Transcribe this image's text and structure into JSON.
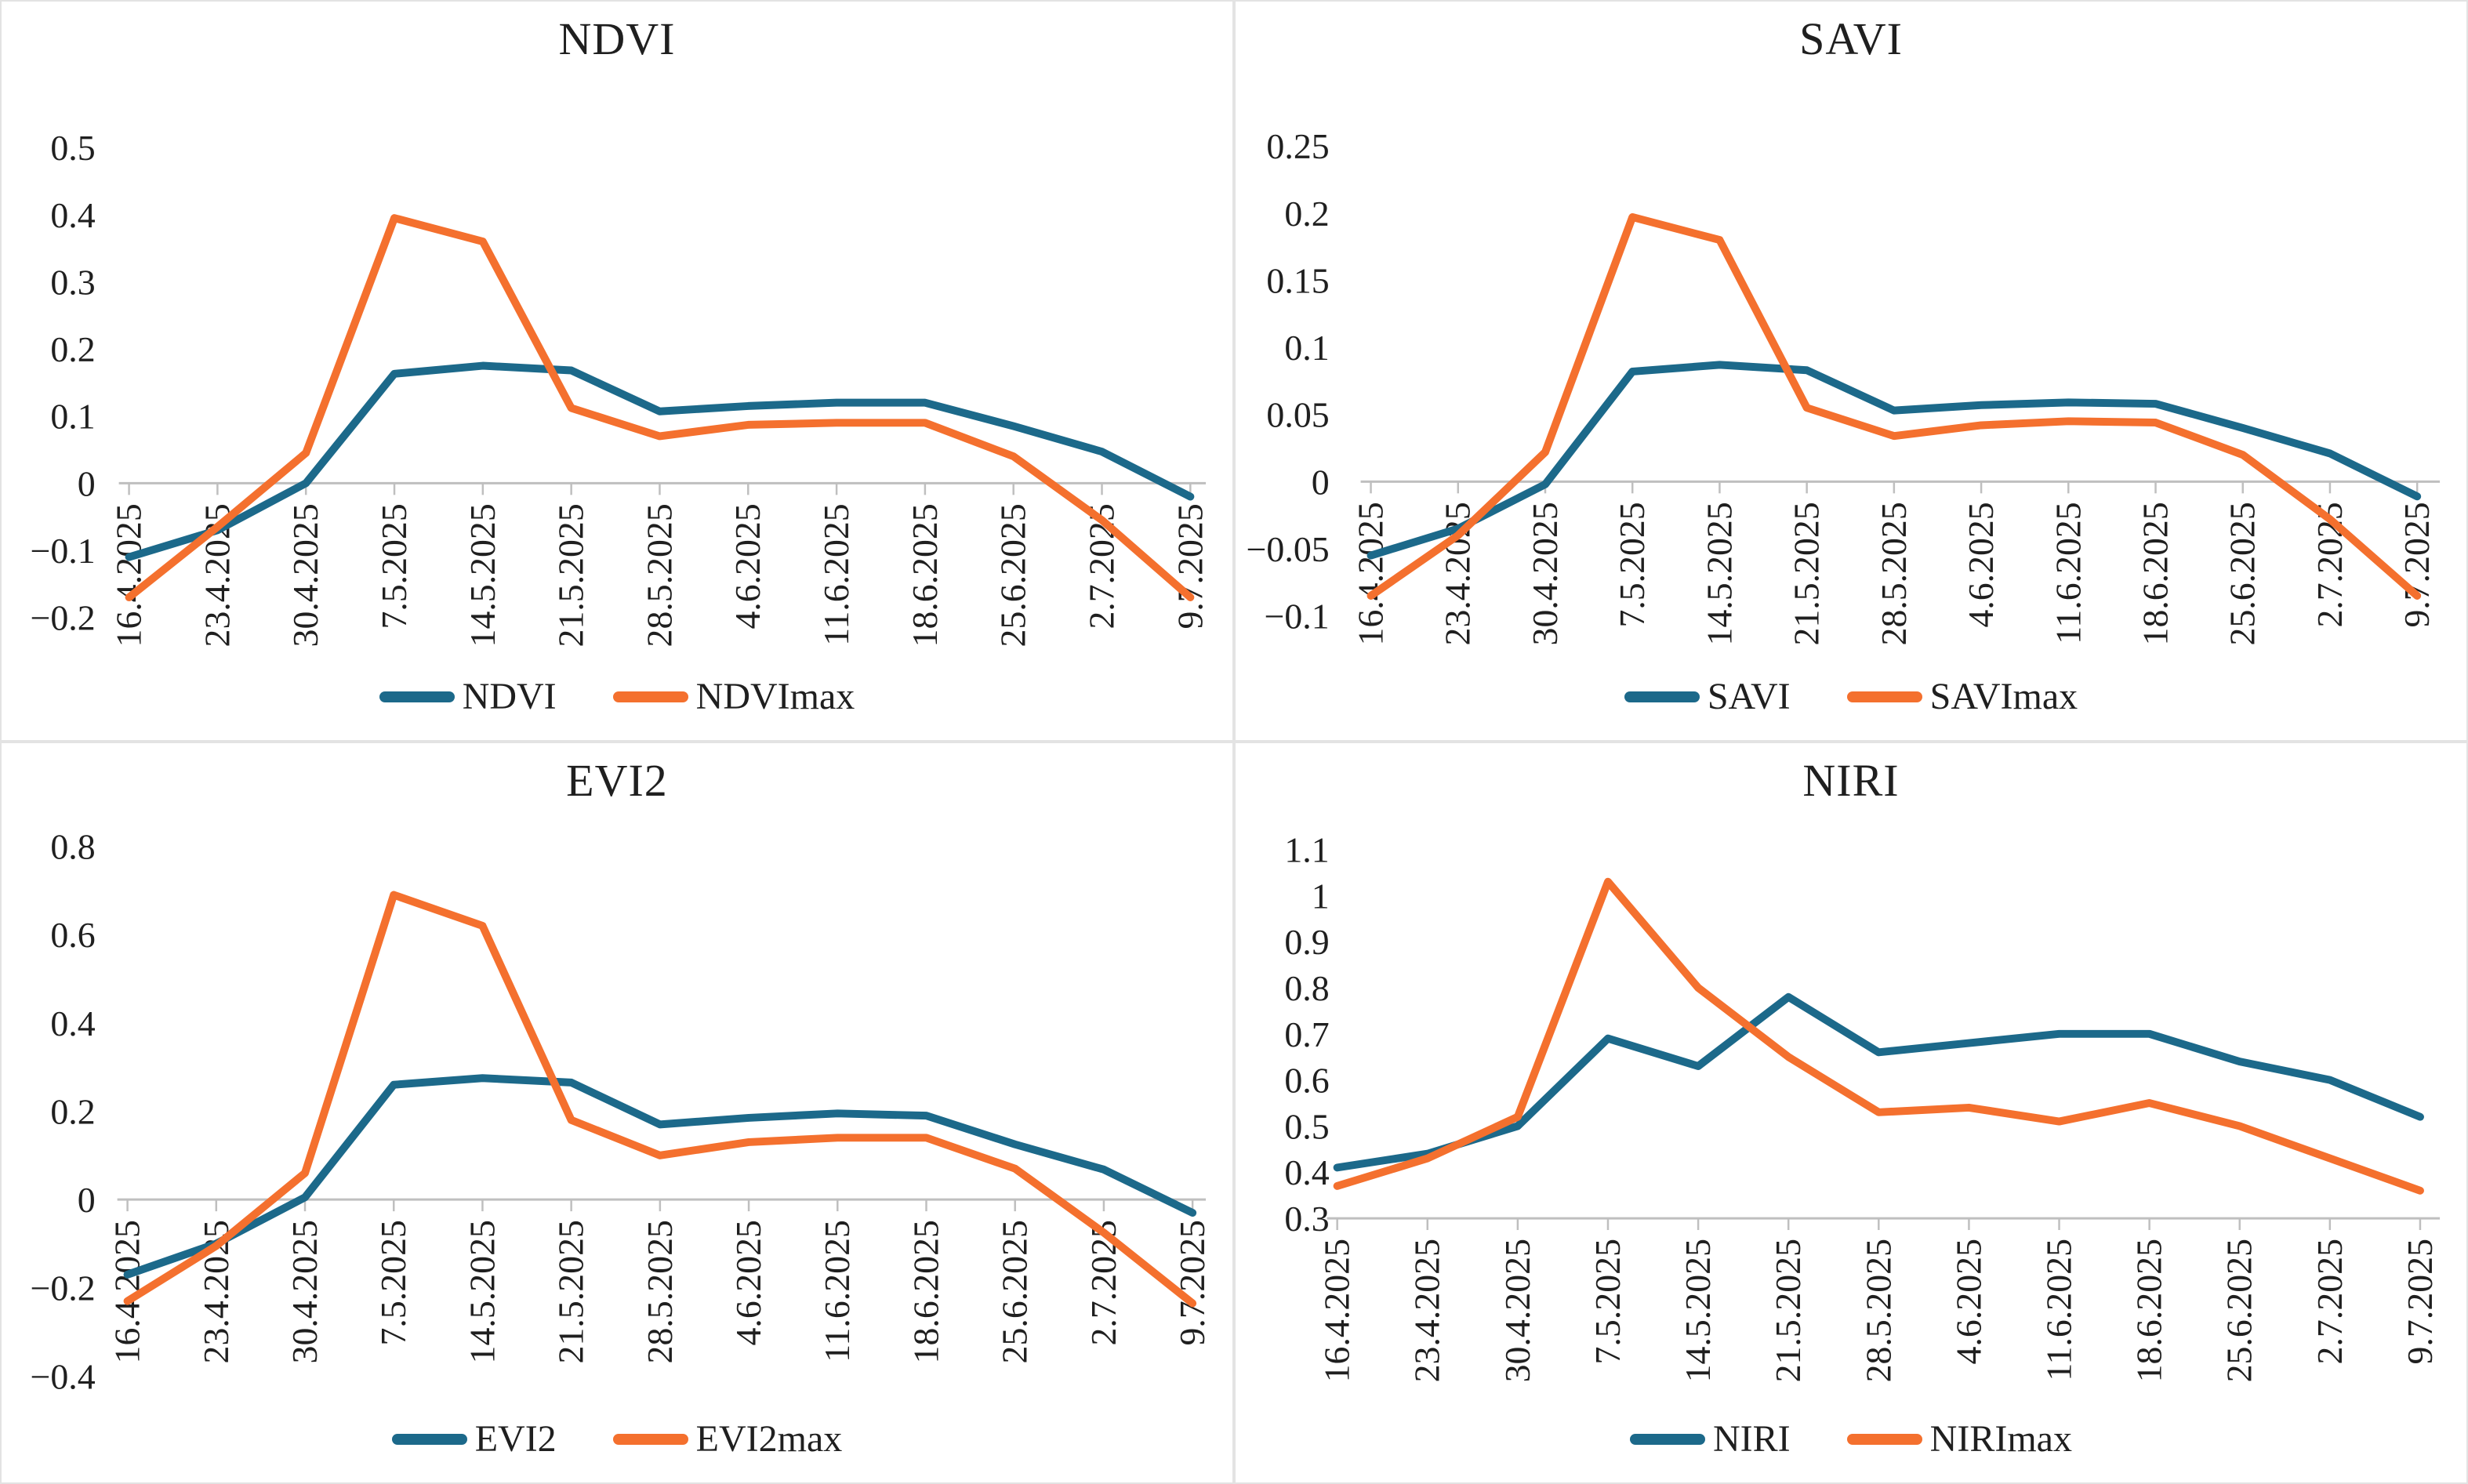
{
  "colors": {
    "series_primary": "#1C698A",
    "series_max": "#F4702E",
    "axis_line": "#BFBFBF",
    "text": "#1F1F1F",
    "panel_border": "#E3E3E3"
  },
  "chart_data": [
    {
      "type": "line",
      "title": "NDVI",
      "xlabel": "",
      "ylabel": "",
      "ylim": [
        -0.2,
        0.5
      ],
      "y_ticks": [
        0.5,
        0.4,
        0.3,
        0.2,
        0.1,
        0,
        -0.1,
        -0.2
      ],
      "x_axis_at": 0,
      "grid": false,
      "legend_position": "bottom",
      "categories": [
        "16.4.2025",
        "23.4.2025",
        "30.4.2025",
        "7.5.2025",
        "14.5.2025",
        "21.5.2025",
        "28.5.2025",
        "4.6.2025",
        "11.6.2025",
        "18.6.2025",
        "25.6.2025",
        "2.7.2025",
        "9.7.2025"
      ],
      "series": [
        {
          "name": "NDVI",
          "role": "primary",
          "values": [
            -0.11,
            -0.07,
            0.0,
            0.163,
            0.175,
            0.168,
            0.107,
            0.115,
            0.12,
            0.12,
            0.085,
            0.047,
            -0.02
          ]
        },
        {
          "name": "NDVImax",
          "role": "max",
          "values": [
            -0.17,
            -0.065,
            0.045,
            0.395,
            0.36,
            0.112,
            0.07,
            0.087,
            0.09,
            0.09,
            0.04,
            -0.055,
            -0.17
          ]
        }
      ]
    },
    {
      "type": "line",
      "title": "SAVI",
      "xlabel": "",
      "ylabel": "",
      "ylim": [
        -0.1,
        0.25
      ],
      "y_ticks": [
        0.25,
        0.2,
        0.15,
        0.1,
        0.05,
        0,
        -0.05,
        -0.1
      ],
      "x_axis_at": 0,
      "grid": false,
      "legend_position": "bottom",
      "categories": [
        "16.4.2025",
        "23.4.2025",
        "30.4.2025",
        "7.5.2025",
        "14.5.2025",
        "21.5.2025",
        "28.5.2025",
        "4.6.2025",
        "11.6.2025",
        "18.6.2025",
        "25.6.2025",
        "2.7.2025",
        "9.7.2025"
      ],
      "series": [
        {
          "name": "SAVI",
          "role": "primary",
          "values": [
            -0.055,
            -0.035,
            -0.002,
            0.082,
            0.087,
            0.083,
            0.053,
            0.057,
            0.059,
            0.058,
            0.04,
            0.021,
            -0.011
          ]
        },
        {
          "name": "SAVImax",
          "role": "max",
          "values": [
            -0.085,
            -0.04,
            0.022,
            0.197,
            0.18,
            0.055,
            0.034,
            0.042,
            0.045,
            0.044,
            0.02,
            -0.028,
            -0.085
          ]
        }
      ]
    },
    {
      "type": "line",
      "title": "EVI2",
      "xlabel": "",
      "ylabel": "",
      "ylim": [
        -0.4,
        0.8
      ],
      "y_ticks": [
        0.8,
        0.6,
        0.4,
        0.2,
        0,
        -0.2,
        -0.4
      ],
      "x_axis_at": 0,
      "grid": false,
      "legend_position": "bottom",
      "categories": [
        "16.4.2025",
        "23.4.2025",
        "30.4.2025",
        "7.5.2025",
        "14.5.2025",
        "21.5.2025",
        "28.5.2025",
        "4.6.2025",
        "11.6.2025",
        "18.6.2025",
        "25.6.2025",
        "2.7.2025",
        "9.7.2025"
      ],
      "series": [
        {
          "name": "EVI2",
          "role": "primary",
          "values": [
            -0.17,
            -0.1,
            0.005,
            0.26,
            0.275,
            0.265,
            0.17,
            0.185,
            0.195,
            0.19,
            0.125,
            0.068,
            -0.03
          ]
        },
        {
          "name": "EVI2max",
          "role": "max",
          "values": [
            -0.23,
            -0.105,
            0.06,
            0.69,
            0.62,
            0.18,
            0.1,
            0.13,
            0.14,
            0.14,
            0.07,
            -0.075,
            -0.235
          ]
        }
      ]
    },
    {
      "type": "line",
      "title": "NIRI",
      "xlabel": "",
      "ylabel": "",
      "ylim": [
        0.3,
        1.1
      ],
      "y_ticks": [
        1.1,
        1,
        0.9,
        0.8,
        0.7,
        0.6,
        0.5,
        0.4,
        0.3
      ],
      "x_axis_at": 0.3,
      "grid": false,
      "legend_position": "bottom",
      "categories": [
        "16.4.2025",
        "23.4.2025",
        "30.4.2025",
        "7.5.2025",
        "14.5.2025",
        "21.5.2025",
        "28.5.2025",
        "4.6.2025",
        "11.6.2025",
        "18.6.2025",
        "25.6.2025",
        "2.7.2025",
        "9.7.2025"
      ],
      "series": [
        {
          "name": "NIRI",
          "role": "primary",
          "values": [
            0.41,
            0.44,
            0.5,
            0.69,
            0.63,
            0.78,
            0.66,
            0.68,
            0.7,
            0.7,
            0.64,
            0.6,
            0.52
          ]
        },
        {
          "name": "NIRImax",
          "role": "max",
          "values": [
            0.37,
            0.43,
            0.52,
            1.03,
            0.8,
            0.65,
            0.53,
            0.54,
            0.51,
            0.55,
            0.5,
            0.43,
            0.36
          ]
        }
      ]
    }
  ]
}
